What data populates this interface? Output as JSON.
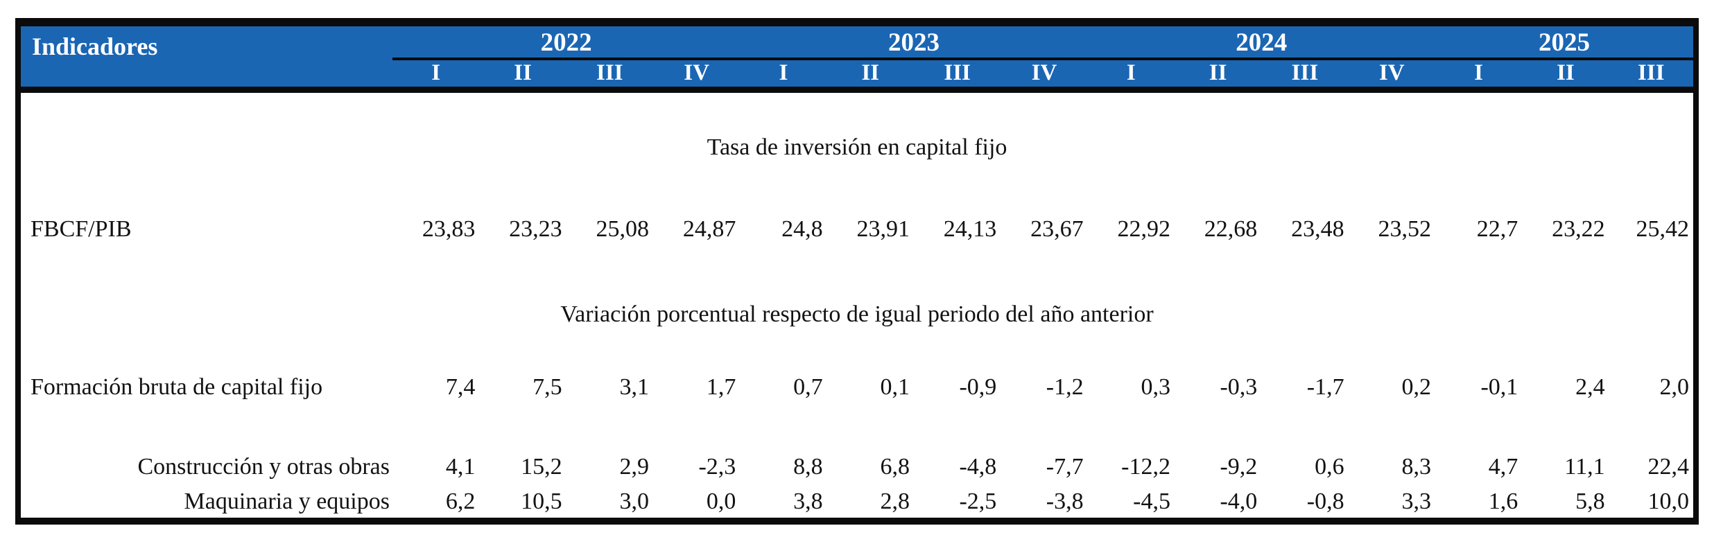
{
  "chart_data": {
    "type": "table",
    "corner_label": "Indicadores",
    "year_groups": [
      {
        "year": "2022",
        "quarters": [
          "I",
          "II",
          "III",
          "IV"
        ]
      },
      {
        "year": "2023",
        "quarters": [
          "I",
          "II",
          "III",
          "IV"
        ]
      },
      {
        "year": "2024",
        "quarters": [
          "I",
          "II",
          "III",
          "IV"
        ]
      },
      {
        "year": "2025",
        "quarters": [
          "I",
          "II",
          "III"
        ]
      }
    ],
    "quarters_flat": [
      "I",
      "II",
      "III",
      "IV",
      "I",
      "II",
      "III",
      "IV",
      "I",
      "II",
      "III",
      "IV",
      "I",
      "II",
      "III"
    ],
    "sections": [
      {
        "title": "Tasa de inversión en capital fijo"
      },
      {
        "title": "Variación porcentual respecto de igual periodo del año anterior"
      }
    ],
    "rows": [
      {
        "label": "FBCF/PIB",
        "section": 0,
        "values": [
          "23,83",
          "23,23",
          "25,08",
          "24,87",
          "24,8",
          "23,91",
          "24,13",
          "23,67",
          "22,92",
          "22,68",
          "23,48",
          "23,52",
          "22,7",
          "23,22",
          "25,42"
        ]
      },
      {
        "label": "Formación bruta de capital fijo",
        "section": 1,
        "values": [
          "7,4",
          "7,5",
          "3,1",
          "1,7",
          "0,7",
          "0,1",
          "-0,9",
          "-1,2",
          "0,3",
          "-0,3",
          "-1,7",
          "0,2",
          "-0,1",
          "2,4",
          "2,0"
        ]
      },
      {
        "label": "Construcción y otras obras",
        "section": 1,
        "values": [
          "4,1",
          "15,2",
          "2,9",
          "-2,3",
          "8,8",
          "6,8",
          "-4,8",
          "-7,7",
          "-12,2",
          "-9,2",
          "0,6",
          "8,3",
          "4,7",
          "11,1",
          "22,4"
        ]
      },
      {
        "label": "Maquinaria y equipos",
        "section": 1,
        "values": [
          "6,2",
          "10,5",
          "3,0",
          "0,0",
          "3,8",
          "2,8",
          "-2,5",
          "-3,8",
          "-4,5",
          "-4,0",
          "-0,8",
          "3,3",
          "1,6",
          "5,8",
          "10,0"
        ]
      }
    ]
  },
  "colors": {
    "header_bg": "#1b66b3",
    "header_text": "#ffffff",
    "border_color": "#0b0b0b",
    "body_text": "#121212"
  }
}
